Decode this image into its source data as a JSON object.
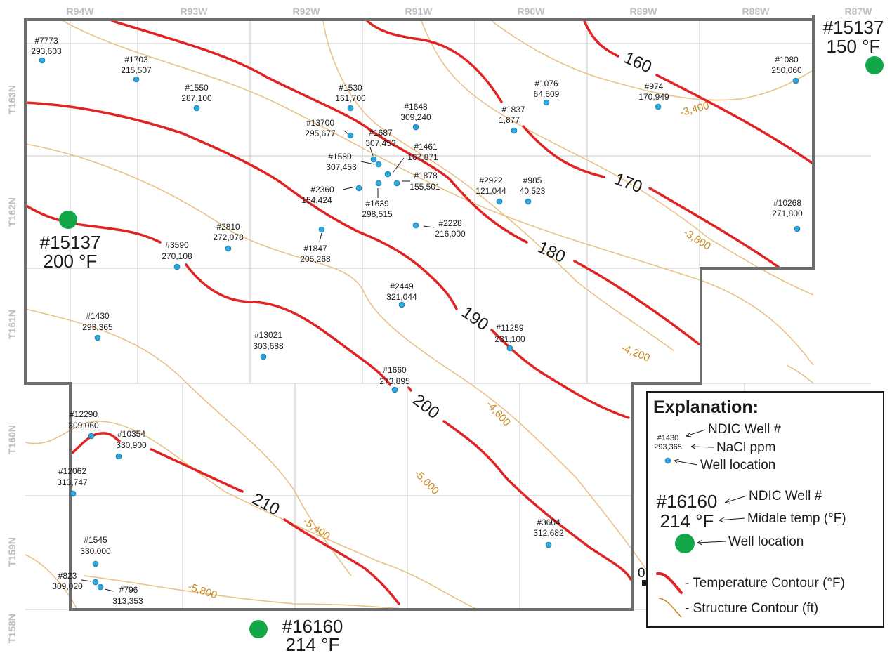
{
  "ranges": [
    "R94W",
    "R93W",
    "R92W",
    "R91W",
    "R90W",
    "R89W",
    "R88W",
    "R87W"
  ],
  "townships": [
    "T163N",
    "T162N",
    "T161N",
    "T160N",
    "T159N",
    "T158N"
  ],
  "colors": {
    "temperature": "#e02424",
    "structure": "#e9c287",
    "structure_label": "#c88a1f",
    "well": "#29a8e0",
    "temp_well": "#12a84a",
    "border": "#6d6d6d",
    "grid": "#c9c9c9"
  },
  "wells": [
    {
      "id": "#7773",
      "nacl": "293,603"
    },
    {
      "id": "#1703",
      "nacl": "215,507"
    },
    {
      "id": "#1550",
      "nacl": "287,100"
    },
    {
      "id": "#1530",
      "nacl": "161,700"
    },
    {
      "id": "#1648",
      "nacl": "309,240"
    },
    {
      "id": "#13700",
      "nacl": "295,677"
    },
    {
      "id": "#1687",
      "nacl": "307,453"
    },
    {
      "id": "#1461",
      "nacl": "167,871"
    },
    {
      "id": "#1580",
      "nacl": "307,453"
    },
    {
      "id": "#1878",
      "nacl": "155,501"
    },
    {
      "id": "#2360",
      "nacl": "154,424"
    },
    {
      "id": "#1639",
      "nacl": "298,515"
    },
    {
      "id": "#1837",
      "nacl": "1,877"
    },
    {
      "id": "#1076",
      "nacl": "64,509"
    },
    {
      "id": "#974",
      "nacl": "170,949"
    },
    {
      "id": "#1080",
      "nacl": "250,060"
    },
    {
      "id": "#2922",
      "nacl": "121,044"
    },
    {
      "id": "#985",
      "nacl": "40,523"
    },
    {
      "id": "#10268",
      "nacl": "271,800"
    },
    {
      "id": "#2228",
      "nacl": "216,000"
    },
    {
      "id": "#2810",
      "nacl": "272,078"
    },
    {
      "id": "#3590",
      "nacl": "270,108"
    },
    {
      "id": "#1847",
      "nacl": "205,268"
    },
    {
      "id": "#2449",
      "nacl": "321,044"
    },
    {
      "id": "#1430",
      "nacl": "293,365"
    },
    {
      "id": "#13021",
      "nacl": "303,688"
    },
    {
      "id": "#11259",
      "nacl": "231,100"
    },
    {
      "id": "#1660",
      "nacl": "273,895"
    },
    {
      "id": "#12290",
      "nacl": "309,060"
    },
    {
      "id": "#10354",
      "nacl": "330,900"
    },
    {
      "id": "#12062",
      "nacl": "313,747"
    },
    {
      "id": "#3604",
      "nacl": "312,682"
    },
    {
      "id": "#1545",
      "nacl": "330,000"
    },
    {
      "id": "#823",
      "nacl": "309,020"
    },
    {
      "id": "#796",
      "nacl": "313,353"
    }
  ],
  "temp_wells": [
    {
      "id": "#15137",
      "temp": "150 °F"
    },
    {
      "id": "#15137",
      "temp": "200 °F"
    },
    {
      "id": "#16160",
      "temp": "214 °F"
    }
  ],
  "temperature_contours": [
    "160",
    "170",
    "180",
    "190",
    "200",
    "210"
  ],
  "structure_contours": [
    "-3,400",
    "-3,800",
    "-4,200",
    "-4,600",
    "-5,000",
    "-5,400",
    "-5,800"
  ],
  "legend": {
    "title": "Explanation:",
    "sample_well_id": "#1430",
    "sample_nacl": "293,365",
    "well_id_label": "NDIC Well #",
    "nacl_label": "NaCl ppm",
    "location_label": "Well location",
    "sample_temp_well_id": "#16160",
    "sample_temp": "214 °F",
    "temp_well_id_label": "NDIC Well #",
    "temp_label": "Midale temp (°F)",
    "temp_location_label": "Well location",
    "temp_contour_label": "- Temperature Contour (°F)",
    "struct_contour_label": "- Structure Contour (ft)"
  },
  "stray_text": "0"
}
